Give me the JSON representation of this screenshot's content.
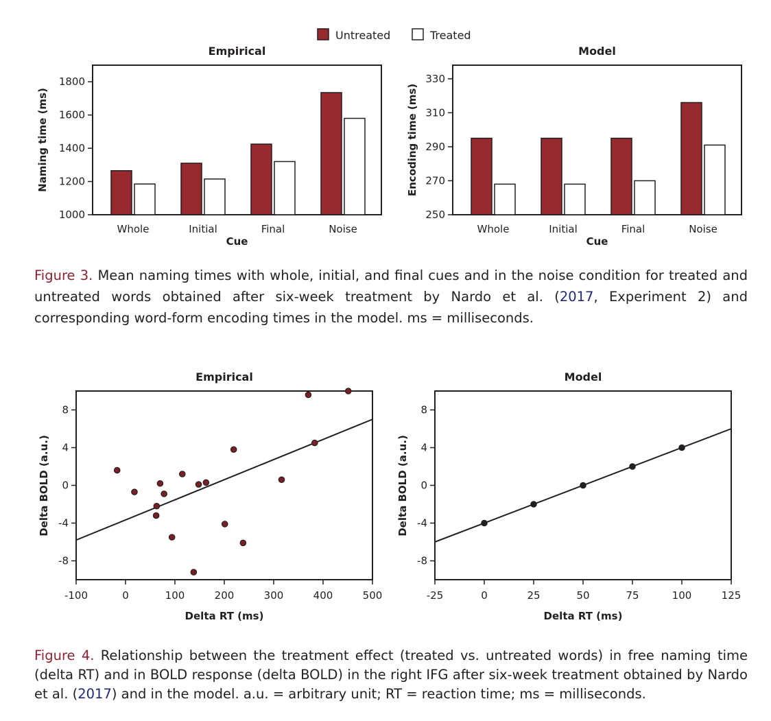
{
  "legend": {
    "untreated": "Untreated",
    "treated": "Treated"
  },
  "colors": {
    "untreated": "#962a2e",
    "treated": "#ffffff",
    "axis": "#231f20",
    "point": "#7a1f23",
    "figure_label": "#8b2332",
    "citation": "#1f2a77"
  },
  "figure3": {
    "caption_label": "Figure 3.",
    "caption_part1": " Mean naming times with whole, initial, and final cues and in the noise condition for treated and untreated words obtained after six-week treatment by Nardo et al. (",
    "caption_cite": "2017",
    "caption_part2": ", Experiment 2) and corresponding word-form encoding times in the model. ms = milliseconds."
  },
  "figure4": {
    "caption_label": "Figure 4.",
    "caption_part1": " Relationship between the treatment effect (treated vs. untreated words) in free naming time (delta RT) and in BOLD response (delta BOLD) in the right IFG after six-week treatment obtained by Nardo et al. (",
    "caption_cite": "2017",
    "caption_part2": ") and in the model. a.u. = arbitrary unit; RT = reaction time; ms = milliseconds."
  },
  "chart_data": [
    {
      "type": "bar",
      "title": "Empirical",
      "xlabel": "Cue",
      "ylabel": "Naming time (ms)",
      "categories": [
        "Whole",
        "Initial",
        "Final",
        "Noise"
      ],
      "series": [
        {
          "name": "Untreated",
          "values": [
            1265,
            1310,
            1425,
            1735
          ]
        },
        {
          "name": "Treated",
          "values": [
            1185,
            1215,
            1320,
            1580
          ]
        }
      ],
      "ylim": [
        1000,
        1900
      ],
      "yticks": [
        1000,
        1200,
        1400,
        1600,
        1800
      ],
      "legend": "top-center",
      "grid": false
    },
    {
      "type": "bar",
      "title": "Model",
      "xlabel": "Cue",
      "ylabel": "Encoding time (ms)",
      "categories": [
        "Whole",
        "Initial",
        "Final",
        "Noise"
      ],
      "series": [
        {
          "name": "Untreated",
          "values": [
            295,
            295,
            295,
            316
          ]
        },
        {
          "name": "Treated",
          "values": [
            268,
            268,
            270,
            291
          ]
        }
      ],
      "ylim": [
        250,
        338
      ],
      "yticks": [
        250,
        270,
        290,
        310,
        330
      ],
      "legend": "top-center",
      "grid": false
    },
    {
      "type": "scatter",
      "title": "Empirical",
      "xlabel": "Delta RT (ms)",
      "ylabel": "Delta BOLD (a.u.)",
      "xlim": [
        -100,
        500
      ],
      "ylim": [
        -10,
        10
      ],
      "xticks": [
        -100,
        0,
        100,
        200,
        300,
        400,
        500
      ],
      "yticks": [
        -8,
        -4,
        0,
        4,
        8
      ],
      "points": [
        {
          "x": -17,
          "y": 1.6
        },
        {
          "x": 18,
          "y": -0.7
        },
        {
          "x": 63,
          "y": -2.2
        },
        {
          "x": 62,
          "y": -3.2
        },
        {
          "x": 70,
          "y": 0.2
        },
        {
          "x": 78,
          "y": -0.9
        },
        {
          "x": 94,
          "y": -5.5
        },
        {
          "x": 115,
          "y": 1.2
        },
        {
          "x": 138,
          "y": -9.2
        },
        {
          "x": 148,
          "y": 0.1
        },
        {
          "x": 163,
          "y": 0.3
        },
        {
          "x": 201,
          "y": -4.1
        },
        {
          "x": 219,
          "y": 3.8
        },
        {
          "x": 238,
          "y": -6.1
        },
        {
          "x": 316,
          "y": 0.6
        },
        {
          "x": 370,
          "y": 9.6
        },
        {
          "x": 383,
          "y": 4.5
        },
        {
          "x": 451,
          "y": 10.0
        }
      ],
      "fit_line": {
        "x": [
          -100,
          500
        ],
        "y": [
          -5.8,
          7.0
        ]
      },
      "grid": false
    },
    {
      "type": "scatter",
      "title": "Model",
      "xlabel": "Delta RT (ms)",
      "ylabel": "Delta BOLD (a.u.)",
      "xlim": [
        -25,
        125
      ],
      "ylim": [
        -10,
        10
      ],
      "xticks": [
        -25,
        0,
        25,
        50,
        75,
        100,
        125
      ],
      "yticks": [
        -8,
        -4,
        0,
        4,
        8
      ],
      "points": [
        {
          "x": 0,
          "y": -4
        },
        {
          "x": 25,
          "y": -2
        },
        {
          "x": 50,
          "y": 0
        },
        {
          "x": 75,
          "y": 2
        },
        {
          "x": 100,
          "y": 4
        }
      ],
      "fit_line": {
        "x": [
          -25,
          125
        ],
        "y": [
          -6,
          6
        ]
      },
      "grid": false
    }
  ]
}
